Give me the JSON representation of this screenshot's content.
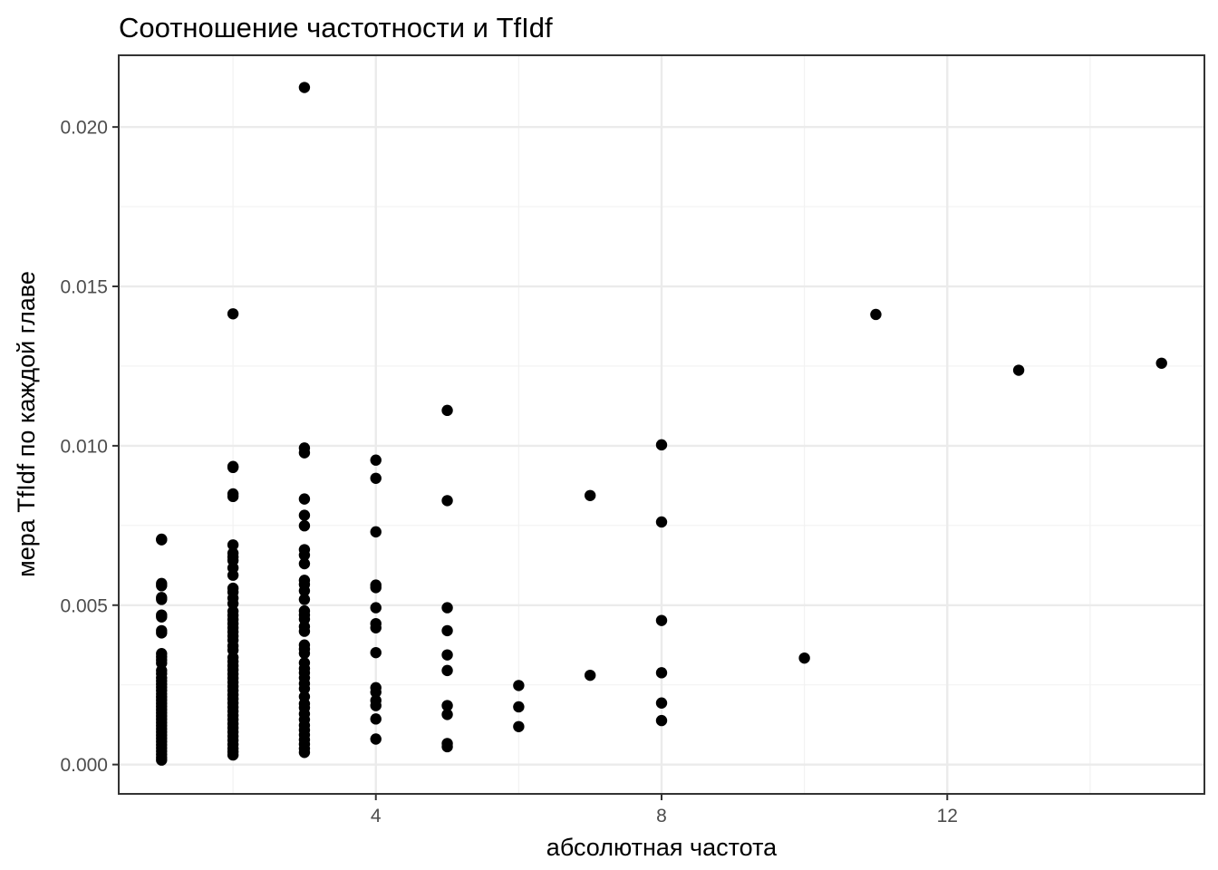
{
  "chart_data": {
    "type": "scatter",
    "title": "Соотношение частотности и TfIdf",
    "xlabel": "абсолютная частота",
    "ylabel": "мера TfIdf по каждой главе",
    "xlim": [
      0.4,
      15.6
    ],
    "ylim": [
      -0.00092,
      0.02225
    ],
    "x_ticks": [
      4,
      8,
      12
    ],
    "x_tick_labels": [
      "4",
      "8",
      "12"
    ],
    "y_ticks": [
      0,
      0.005,
      0.01,
      0.015,
      0.02
    ],
    "y_tick_labels": [
      "0.000",
      "0.005",
      "0.010",
      "0.015",
      "0.020"
    ],
    "grid": true,
    "legend": "none",
    "point_color": "#000000",
    "points": [
      {
        "x": 1,
        "y": 0.00707
      },
      {
        "x": 1,
        "y": 0.00705
      },
      {
        "x": 1,
        "y": 0.00568
      },
      {
        "x": 1,
        "y": 0.00561
      },
      {
        "x": 1,
        "y": 0.00524
      },
      {
        "x": 1,
        "y": 0.00518
      },
      {
        "x": 1,
        "y": 0.00469
      },
      {
        "x": 1,
        "y": 0.00463
      },
      {
        "x": 1,
        "y": 0.0042
      },
      {
        "x": 1,
        "y": 0.00413
      },
      {
        "x": 1,
        "y": 0.00348
      },
      {
        "x": 1,
        "y": 0.00338
      },
      {
        "x": 1,
        "y": 0.00328
      },
      {
        "x": 1,
        "y": 0.00318
      },
      {
        "x": 1,
        "y": 0.00295
      },
      {
        "x": 1,
        "y": 0.00285
      },
      {
        "x": 1,
        "y": 0.00272
      },
      {
        "x": 1,
        "y": 0.00262
      },
      {
        "x": 1,
        "y": 0.00252
      },
      {
        "x": 1,
        "y": 0.00242
      },
      {
        "x": 1,
        "y": 0.00232
      },
      {
        "x": 1,
        "y": 0.00222
      },
      {
        "x": 1,
        "y": 0.00212
      },
      {
        "x": 1,
        "y": 0.00202
      },
      {
        "x": 1,
        "y": 0.00192
      },
      {
        "x": 1,
        "y": 0.00182
      },
      {
        "x": 1,
        "y": 0.00172
      },
      {
        "x": 1,
        "y": 0.00162
      },
      {
        "x": 1,
        "y": 0.00152
      },
      {
        "x": 1,
        "y": 0.00142
      },
      {
        "x": 1,
        "y": 0.00132
      },
      {
        "x": 1,
        "y": 0.00122
      },
      {
        "x": 1,
        "y": 0.00112
      },
      {
        "x": 1,
        "y": 0.00102
      },
      {
        "x": 1,
        "y": 0.00092
      },
      {
        "x": 1,
        "y": 0.00082
      },
      {
        "x": 1,
        "y": 0.00072
      },
      {
        "x": 1,
        "y": 0.00062
      },
      {
        "x": 1,
        "y": 0.00052
      },
      {
        "x": 1,
        "y": 0.00042
      },
      {
        "x": 1,
        "y": 0.00032
      },
      {
        "x": 1,
        "y": 0.00022
      },
      {
        "x": 1,
        "y": 0.00014
      },
      {
        "x": 2,
        "y": 0.01414
      },
      {
        "x": 2,
        "y": 0.00935
      },
      {
        "x": 2,
        "y": 0.00932
      },
      {
        "x": 2,
        "y": 0.00849
      },
      {
        "x": 2,
        "y": 0.00841
      },
      {
        "x": 2,
        "y": 0.00689
      },
      {
        "x": 2,
        "y": 0.00663
      },
      {
        "x": 2,
        "y": 0.00651
      },
      {
        "x": 2,
        "y": 0.0064
      },
      {
        "x": 2,
        "y": 0.00617
      },
      {
        "x": 2,
        "y": 0.00594
      },
      {
        "x": 2,
        "y": 0.00553
      },
      {
        "x": 2,
        "y": 0.00541
      },
      {
        "x": 2,
        "y": 0.00522
      },
      {
        "x": 2,
        "y": 0.00505
      },
      {
        "x": 2,
        "y": 0.00481
      },
      {
        "x": 2,
        "y": 0.00468
      },
      {
        "x": 2,
        "y": 0.00455
      },
      {
        "x": 2,
        "y": 0.00442
      },
      {
        "x": 2,
        "y": 0.00429
      },
      {
        "x": 2,
        "y": 0.00416
      },
      {
        "x": 2,
        "y": 0.00403
      },
      {
        "x": 2,
        "y": 0.0039
      },
      {
        "x": 2,
        "y": 0.00372
      },
      {
        "x": 2,
        "y": 0.00359
      },
      {
        "x": 2,
        "y": 0.00336
      },
      {
        "x": 2,
        "y": 0.00323
      },
      {
        "x": 2,
        "y": 0.0031
      },
      {
        "x": 2,
        "y": 0.00297
      },
      {
        "x": 2,
        "y": 0.00284
      },
      {
        "x": 2,
        "y": 0.00271
      },
      {
        "x": 2,
        "y": 0.00258
      },
      {
        "x": 2,
        "y": 0.00245
      },
      {
        "x": 2,
        "y": 0.00232
      },
      {
        "x": 2,
        "y": 0.00219
      },
      {
        "x": 2,
        "y": 0.00206
      },
      {
        "x": 2,
        "y": 0.00193
      },
      {
        "x": 2,
        "y": 0.0018
      },
      {
        "x": 2,
        "y": 0.00167
      },
      {
        "x": 2,
        "y": 0.00154
      },
      {
        "x": 2,
        "y": 0.00141
      },
      {
        "x": 2,
        "y": 0.00128
      },
      {
        "x": 2,
        "y": 0.00115
      },
      {
        "x": 2,
        "y": 0.00102
      },
      {
        "x": 2,
        "y": 0.00089
      },
      {
        "x": 2,
        "y": 0.00076
      },
      {
        "x": 2,
        "y": 0.00063
      },
      {
        "x": 2,
        "y": 0.0005
      },
      {
        "x": 2,
        "y": 0.0004
      },
      {
        "x": 2,
        "y": 0.0003
      },
      {
        "x": 3,
        "y": 0.02124
      },
      {
        "x": 3,
        "y": 0.00993
      },
      {
        "x": 3,
        "y": 0.00978
      },
      {
        "x": 3,
        "y": 0.00833
      },
      {
        "x": 3,
        "y": 0.00782
      },
      {
        "x": 3,
        "y": 0.00749
      },
      {
        "x": 3,
        "y": 0.00674
      },
      {
        "x": 3,
        "y": 0.00657
      },
      {
        "x": 3,
        "y": 0.0063
      },
      {
        "x": 3,
        "y": 0.00578
      },
      {
        "x": 3,
        "y": 0.00565
      },
      {
        "x": 3,
        "y": 0.00545
      },
      {
        "x": 3,
        "y": 0.00518
      },
      {
        "x": 3,
        "y": 0.00482
      },
      {
        "x": 3,
        "y": 0.00469
      },
      {
        "x": 3,
        "y": 0.00456
      },
      {
        "x": 3,
        "y": 0.00433
      },
      {
        "x": 3,
        "y": 0.00418
      },
      {
        "x": 3,
        "y": 0.00375
      },
      {
        "x": 3,
        "y": 0.00362
      },
      {
        "x": 3,
        "y": 0.00349
      },
      {
        "x": 3,
        "y": 0.00319
      },
      {
        "x": 3,
        "y": 0.00301
      },
      {
        "x": 3,
        "y": 0.00288
      },
      {
        "x": 3,
        "y": 0.00272
      },
      {
        "x": 3,
        "y": 0.00254
      },
      {
        "x": 3,
        "y": 0.00238
      },
      {
        "x": 3,
        "y": 0.00213
      },
      {
        "x": 3,
        "y": 0.00191
      },
      {
        "x": 3,
        "y": 0.00178
      },
      {
        "x": 3,
        "y": 0.00159
      },
      {
        "x": 3,
        "y": 0.00141
      },
      {
        "x": 3,
        "y": 0.00123
      },
      {
        "x": 3,
        "y": 0.00108
      },
      {
        "x": 3,
        "y": 0.00093
      },
      {
        "x": 3,
        "y": 0.00078
      },
      {
        "x": 3,
        "y": 0.00064
      },
      {
        "x": 3,
        "y": 0.0005
      },
      {
        "x": 3,
        "y": 0.00038
      },
      {
        "x": 4,
        "y": 0.00955
      },
      {
        "x": 4,
        "y": 0.00898
      },
      {
        "x": 4,
        "y": 0.0073
      },
      {
        "x": 4,
        "y": 0.00563
      },
      {
        "x": 4,
        "y": 0.00555
      },
      {
        "x": 4,
        "y": 0.00492
      },
      {
        "x": 4,
        "y": 0.00442
      },
      {
        "x": 4,
        "y": 0.00429
      },
      {
        "x": 4,
        "y": 0.00351
      },
      {
        "x": 4,
        "y": 0.00241
      },
      {
        "x": 4,
        "y": 0.00227
      },
      {
        "x": 4,
        "y": 0.00201
      },
      {
        "x": 4,
        "y": 0.00185
      },
      {
        "x": 4,
        "y": 0.00143
      },
      {
        "x": 4,
        "y": 0.0008
      },
      {
        "x": 5,
        "y": 0.01111
      },
      {
        "x": 5,
        "y": 0.00828
      },
      {
        "x": 5,
        "y": 0.00492
      },
      {
        "x": 5,
        "y": 0.0042
      },
      {
        "x": 5,
        "y": 0.00344
      },
      {
        "x": 5,
        "y": 0.00295
      },
      {
        "x": 5,
        "y": 0.00185
      },
      {
        "x": 5,
        "y": 0.00157
      },
      {
        "x": 5,
        "y": 0.00066
      },
      {
        "x": 5,
        "y": 0.00056
      },
      {
        "x": 6,
        "y": 0.00248
      },
      {
        "x": 6,
        "y": 0.00181
      },
      {
        "x": 6,
        "y": 0.00119
      },
      {
        "x": 7,
        "y": 0.00844
      },
      {
        "x": 7,
        "y": 0.0028
      },
      {
        "x": 8,
        "y": 0.01003
      },
      {
        "x": 8,
        "y": 0.00761
      },
      {
        "x": 8,
        "y": 0.00452
      },
      {
        "x": 8,
        "y": 0.00288
      },
      {
        "x": 8,
        "y": 0.00193
      },
      {
        "x": 8,
        "y": 0.00138
      },
      {
        "x": 10,
        "y": 0.00334
      },
      {
        "x": 11,
        "y": 0.01412
      },
      {
        "x": 13,
        "y": 0.01237
      },
      {
        "x": 15,
        "y": 0.01259
      }
    ]
  }
}
